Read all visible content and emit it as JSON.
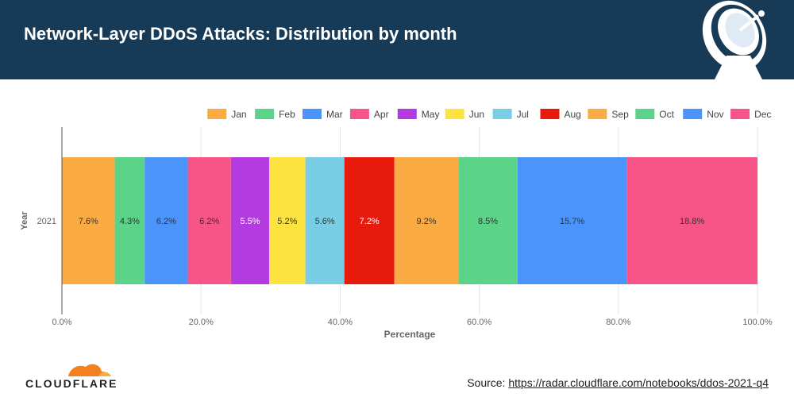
{
  "header": {
    "title": "Network-Layer DDoS Attacks: Distribution by month"
  },
  "chart_data": {
    "type": "bar",
    "orientation": "horizontal",
    "stacked": true,
    "categories": [
      "2021"
    ],
    "series": [
      {
        "name": "Jan",
        "values": [
          7.6
        ],
        "label": "7.6%",
        "color": "#fbab43"
      },
      {
        "name": "Feb",
        "values": [
          4.3
        ],
        "label": "4.3%",
        "color": "#5bd48a"
      },
      {
        "name": "Mar",
        "values": [
          6.2
        ],
        "label": "6.2%",
        "color": "#4a94fb"
      },
      {
        "name": "Apr",
        "values": [
          6.2
        ],
        "label": "6.2%",
        "color": "#f75488"
      },
      {
        "name": "May",
        "values": [
          5.5
        ],
        "label": "5.5%",
        "color": "#b33bdf"
      },
      {
        "name": "Jun",
        "values": [
          5.2
        ],
        "label": "5.2%",
        "color": "#fde340"
      },
      {
        "name": "Jul",
        "values": [
          5.6
        ],
        "label": "5.6%",
        "color": "#78cfe5"
      },
      {
        "name": "Aug",
        "values": [
          7.2
        ],
        "label": "7.2%",
        "color": "#e81a0b"
      },
      {
        "name": "Sep",
        "values": [
          9.2
        ],
        "label": "9.2%",
        "color": "#fbab43"
      },
      {
        "name": "Oct",
        "values": [
          8.5
        ],
        "label": "8.5%",
        "color": "#5bd48a"
      },
      {
        "name": "Nov",
        "values": [
          15.7
        ],
        "label": "15.7%",
        "color": "#4a94fb"
      },
      {
        "name": "Dec",
        "values": [
          18.8
        ],
        "label": "18.8%",
        "color": "#f75488"
      }
    ],
    "xlabel": "Percentage",
    "ylabel": "Year",
    "xlim": [
      0,
      100
    ],
    "xticks": [
      "0.0%",
      "20.0%",
      "40.0%",
      "60.0%",
      "80.0%",
      "100.0%"
    ],
    "xtick_values": [
      0,
      20,
      40,
      60,
      80,
      100
    ],
    "legend_position": "top-right",
    "grid": true
  },
  "footer": {
    "logo_text": "CLOUDFLARE",
    "source_label": "Source:",
    "source_url": "https://radar.cloudflare.com/notebooks/ddos-2021-q4"
  }
}
